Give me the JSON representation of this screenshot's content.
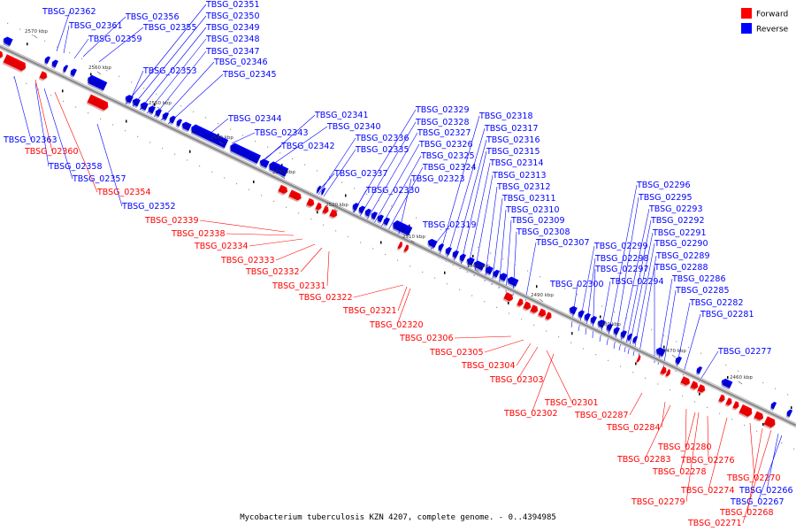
{
  "caption": "Mycobacterium tuberculosis KZN 4207, complete genome. - 0..4394985",
  "legend": [
    {
      "label": "Forward",
      "color": "#ff0000"
    },
    {
      "label": "Reverse",
      "color": "#0000ff"
    }
  ],
  "colors": {
    "forward": "#ff0000",
    "reverse": "#0000ff",
    "backbone": "#8a8a8a"
  },
  "ticks": [
    "2570 kbp",
    "2560 kbp",
    "2550 kbp",
    "2540 kbp",
    "2530 kbp",
    "2520 kbp",
    "2510 kbp",
    "2500 kbp",
    "2490 kbp",
    "2480 kbp",
    "2470 kbp",
    "2460 kbp"
  ],
  "genes_reverse": [
    "TBSG_02362",
    "TBSG_02361",
    "TBSG_02356",
    "TBSG_02351",
    "TBSG_02350",
    "TBSG_02355",
    "TBSG_02349",
    "TBSG_02359",
    "TBSG_02348",
    "TBSG_02347",
    "TBSG_02353",
    "TBSG_02346",
    "TBSG_02345",
    "TBSG_02344",
    "TBSG_02341",
    "TBSG_02343",
    "TBSG_02340",
    "TBSG_02342",
    "TBSG_02336",
    "TBSG_02335",
    "TBSG_02337",
    "TBSG_02330",
    "TBSG_02329",
    "TBSG_02328",
    "TBSG_02327",
    "TBSG_02326",
    "TBSG_02325",
    "TBSG_02324",
    "TBSG_02323",
    "TBSG_02319",
    "TBSG_02318",
    "TBSG_02317",
    "TBSG_02316",
    "TBSG_02315",
    "TBSG_02314",
    "TBSG_02313",
    "TBSG_02312",
    "TBSG_02311",
    "TBSG_02310",
    "TBSG_02309",
    "TBSG_02308",
    "TBSG_02307",
    "TBSG_02300",
    "TBSG_02299",
    "TBSG_02298",
    "TBSG_02297",
    "TBSG_02294",
    "TBSG_02296",
    "TBSG_02295",
    "TBSG_02293",
    "TBSG_02292",
    "TBSG_02291",
    "TBSG_02290",
    "TBSG_02289",
    "TBSG_02288",
    "TBSG_02286",
    "TBSG_02285",
    "TBSG_02282",
    "TBSG_02281",
    "TBSG_02277",
    "TBSG_02363",
    "TBSG_02358",
    "TBSG_02357",
    "TBSG_02352",
    "TBSG_02266",
    "TBSG_02267"
  ],
  "genes_forward": [
    "TBSG_02360",
    "TBSG_02354",
    "TBSG_02339",
    "TBSG_02338",
    "TBSG_02334",
    "TBSG_02333",
    "TBSG_02332",
    "TBSG_02331",
    "TBSG_02322",
    "TBSG_02321",
    "TBSG_02320",
    "TBSG_02306",
    "TBSG_02305",
    "TBSG_02304",
    "TBSG_02303",
    "TBSG_02301",
    "TBSG_02302",
    "TBSG_02287",
    "TBSG_02284",
    "TBSG_02280",
    "TBSG_02283",
    "TBSG_02276",
    "TBSG_02278",
    "TBSG_02270",
    "TBSG_02274",
    "TBSG_02279",
    "TBSG_02268",
    "TBSG_02271"
  ]
}
